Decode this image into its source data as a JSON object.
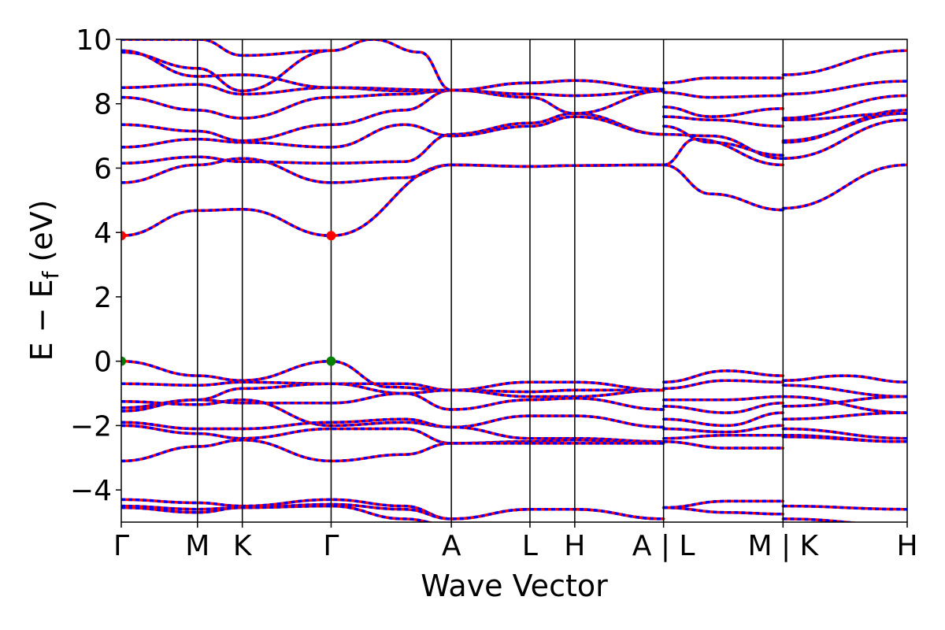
{
  "chart_data": {
    "type": "line",
    "xlabel": "Wave Vector",
    "ylabel": "E − E_f (eV)",
    "ylabel_parts": {
      "main": "E − E",
      "sub": "f",
      "unit": " (eV)"
    },
    "ylim": [
      -5,
      10
    ],
    "y_ticks": [
      -4,
      -2,
      0,
      2,
      4,
      6,
      8,
      10
    ],
    "y_tick_labels": [
      "−4",
      "−2",
      "0",
      "2",
      "4",
      "6",
      "8",
      "10"
    ],
    "x_range": [
      0,
      10.0
    ],
    "kpoints": [
      {
        "label": "Γ",
        "x": 0.0
      },
      {
        "label": "M",
        "x": 0.97
      },
      {
        "label": "K",
        "x": 1.54
      },
      {
        "label": "Γ",
        "x": 2.67
      },
      {
        "label": "A",
        "x": 4.2
      },
      {
        "label": "L",
        "x": 5.2
      },
      {
        "label": "H",
        "x": 5.77
      },
      {
        "label": "A | L",
        "x": 6.9
      },
      {
        "label": "M | K",
        "x": 8.42
      },
      {
        "label": "H",
        "x": 10.0
      }
    ],
    "bands_overlay_colors": {
      "primary": "#ff0000",
      "secondary": "#0000ff"
    },
    "band_points": [
      {
        "name": "c1",
        "pts": [
          [
            0,
            3.9
          ],
          [
            0.97,
            4.68
          ],
          [
            1.54,
            4.72
          ],
          [
            2.67,
            3.9
          ],
          [
            4.2,
            6.1
          ],
          [
            5.2,
            6.05
          ],
          [
            5.77,
            6.08
          ],
          [
            6.9,
            6.1
          ],
          [
            6.9,
            6.1
          ],
          [
            7.5,
            5.2
          ],
          [
            8.42,
            4.7
          ],
          [
            8.42,
            4.75
          ],
          [
            10,
            6.1
          ]
        ]
      },
      {
        "name": "c2",
        "pts": [
          [
            0,
            5.55
          ],
          [
            0.97,
            6.1
          ],
          [
            1.54,
            6.3
          ],
          [
            2.67,
            5.55
          ],
          [
            3.6,
            5.7
          ],
          [
            4.2,
            6.1
          ],
          [
            5.2,
            6.05
          ],
          [
            5.77,
            6.08
          ],
          [
            6.9,
            6.1
          ],
          [
            6.9,
            6.1
          ],
          [
            7.3,
            6.9
          ],
          [
            8.42,
            6.1
          ],
          [
            8.42,
            6.3
          ],
          [
            10,
            7.5
          ]
        ]
      },
      {
        "name": "c3",
        "pts": [
          [
            0,
            6.15
          ],
          [
            0.97,
            6.35
          ],
          [
            1.54,
            6.2
          ],
          [
            2.67,
            6.15
          ],
          [
            3.6,
            6.2
          ],
          [
            4.2,
            7.05
          ],
          [
            5.2,
            7.4
          ],
          [
            5.77,
            7.7
          ],
          [
            6.9,
            7.05
          ],
          [
            6.9,
            7.05
          ],
          [
            7.5,
            7.0
          ],
          [
            8.42,
            6.3
          ],
          [
            8.42,
            6.85
          ],
          [
            10,
            7.7
          ]
        ]
      },
      {
        "name": "c4",
        "pts": [
          [
            0,
            6.65
          ],
          [
            0.97,
            6.9
          ],
          [
            1.54,
            6.8
          ],
          [
            2.67,
            6.65
          ],
          [
            3.6,
            7.35
          ],
          [
            4.2,
            7.0
          ],
          [
            5.2,
            7.3
          ],
          [
            5.77,
            7.6
          ],
          [
            6.9,
            7.05
          ],
          [
            6.9,
            7.3
          ],
          [
            7.5,
            6.8
          ],
          [
            8.42,
            6.4
          ],
          [
            8.42,
            6.8
          ],
          [
            10,
            7.8
          ]
        ]
      },
      {
        "name": "c5",
        "pts": [
          [
            0,
            7.35
          ],
          [
            0.97,
            7.15
          ],
          [
            1.54,
            6.85
          ],
          [
            2.67,
            7.35
          ],
          [
            3.6,
            7.8
          ],
          [
            4.2,
            8.42
          ],
          [
            5.2,
            8.2
          ],
          [
            5.77,
            7.7
          ],
          [
            6.9,
            8.4
          ],
          [
            6.9,
            7.6
          ],
          [
            7.5,
            7.5
          ],
          [
            8.42,
            7.3
          ],
          [
            8.42,
            7.5
          ],
          [
            10,
            7.7
          ]
        ]
      },
      {
        "name": "c6",
        "pts": [
          [
            0,
            8.2
          ],
          [
            0.97,
            7.8
          ],
          [
            1.54,
            7.55
          ],
          [
            2.67,
            8.2
          ],
          [
            3.6,
            8.3
          ],
          [
            4.2,
            8.42
          ],
          [
            5.2,
            8.3
          ],
          [
            5.77,
            8.25
          ],
          [
            6.9,
            8.4
          ],
          [
            6.9,
            7.9
          ],
          [
            7.5,
            7.6
          ],
          [
            8.42,
            7.85
          ],
          [
            8.42,
            7.55
          ],
          [
            10,
            8.25
          ]
        ]
      },
      {
        "name": "c7",
        "pts": [
          [
            0,
            8.5
          ],
          [
            0.97,
            8.6
          ],
          [
            1.54,
            8.3
          ],
          [
            2.67,
            8.5
          ],
          [
            3.6,
            8.4
          ],
          [
            4.2,
            8.42
          ],
          [
            5.2,
            8.65
          ],
          [
            5.77,
            8.72
          ],
          [
            6.9,
            8.45
          ],
          [
            6.9,
            8.35
          ],
          [
            7.5,
            8.2
          ],
          [
            8.42,
            8.25
          ],
          [
            8.42,
            8.3
          ],
          [
            10,
            8.7
          ]
        ]
      },
      {
        "name": "c8",
        "pts": [
          [
            0,
            9.65
          ],
          [
            0.97,
            8.85
          ],
          [
            1.54,
            8.9
          ],
          [
            2.67,
            8.5
          ],
          [
            4.2,
            8.42
          ],
          [
            5.2,
            8.65
          ],
          [
            5.77,
            8.72
          ],
          [
            6.9,
            8.45
          ],
          [
            6.9,
            8.65
          ],
          [
            7.5,
            8.8
          ],
          [
            8.42,
            8.8
          ],
          [
            8.42,
            8.9
          ],
          [
            10,
            9.65
          ]
        ]
      },
      {
        "name": "c9",
        "pts": [
          [
            0,
            9.6
          ],
          [
            0.97,
            9.1
          ],
          [
            1.54,
            8.4
          ],
          [
            2.67,
            9.65
          ],
          [
            3.2,
            10.0
          ],
          [
            3.8,
            9.6
          ],
          [
            4.2,
            8.42
          ]
        ]
      },
      {
        "name": "c10",
        "pts": [
          [
            0,
            10.0
          ],
          [
            1.0,
            10.0
          ],
          [
            1.54,
            9.5
          ],
          [
            2.67,
            9.65
          ]
        ]
      },
      {
        "name": "v1",
        "pts": [
          [
            0,
            0.0
          ],
          [
            0.97,
            -0.45
          ],
          [
            1.54,
            -0.6
          ],
          [
            2.67,
            0.0
          ],
          [
            3.4,
            -0.8
          ],
          [
            4.2,
            -0.9
          ],
          [
            5.2,
            -0.65
          ],
          [
            5.77,
            -0.65
          ],
          [
            6.9,
            -0.9
          ],
          [
            6.9,
            -0.65
          ],
          [
            7.7,
            -0.3
          ],
          [
            8.42,
            -0.45
          ],
          [
            8.42,
            -0.6
          ],
          [
            9.2,
            -0.45
          ],
          [
            10,
            -0.65
          ]
        ]
      },
      {
        "name": "v2",
        "pts": [
          [
            0,
            -0.7
          ],
          [
            0.97,
            -0.75
          ],
          [
            1.54,
            -0.65
          ],
          [
            2.67,
            -0.7
          ],
          [
            3.6,
            -0.7
          ],
          [
            4.2,
            -0.9
          ],
          [
            5.2,
            -0.95
          ],
          [
            5.77,
            -0.9
          ],
          [
            6.9,
            -0.9
          ],
          [
            6.9,
            -0.85
          ],
          [
            7.7,
            -0.6
          ],
          [
            8.42,
            -0.65
          ],
          [
            8.42,
            -0.75
          ],
          [
            10,
            -1.1
          ]
        ]
      },
      {
        "name": "v3",
        "pts": [
          [
            0,
            -1.45
          ],
          [
            0.97,
            -1.2
          ],
          [
            1.54,
            -0.85
          ],
          [
            2.67,
            -0.7
          ],
          [
            3.6,
            -1.0
          ],
          [
            4.2,
            -0.9
          ],
          [
            5.2,
            -1.1
          ],
          [
            5.77,
            -1.1
          ],
          [
            6.9,
            -0.9
          ],
          [
            6.9,
            -1.2
          ],
          [
            7.7,
            -1.2
          ],
          [
            8.42,
            -1.1
          ],
          [
            8.42,
            -1.1
          ],
          [
            10,
            -1.6
          ]
        ]
      },
      {
        "name": "v4",
        "pts": [
          [
            0,
            -1.55
          ],
          [
            0.97,
            -1.2
          ],
          [
            1.54,
            -1.3
          ],
          [
            2.67,
            -1.3
          ],
          [
            3.6,
            -1.0
          ],
          [
            4.2,
            -1.5
          ],
          [
            5.2,
            -1.2
          ],
          [
            5.77,
            -1.15
          ],
          [
            6.9,
            -1.5
          ],
          [
            6.9,
            -1.4
          ],
          [
            7.7,
            -1.6
          ],
          [
            8.42,
            -1.3
          ],
          [
            8.42,
            -1.4
          ],
          [
            10,
            -1.1
          ]
        ]
      },
      {
        "name": "v5",
        "pts": [
          [
            0,
            -1.25
          ],
          [
            0.97,
            -1.35
          ],
          [
            1.54,
            -1.2
          ],
          [
            2.67,
            -2.0
          ],
          [
            3.6,
            -1.9
          ],
          [
            4.2,
            -2.05
          ],
          [
            5.2,
            -1.7
          ],
          [
            5.77,
            -1.7
          ],
          [
            6.9,
            -2.05
          ],
          [
            6.9,
            -1.8
          ],
          [
            7.7,
            -2.0
          ],
          [
            8.42,
            -1.6
          ],
          [
            8.42,
            -1.8
          ],
          [
            10,
            -1.6
          ]
        ]
      },
      {
        "name": "v6",
        "pts": [
          [
            0,
            -1.9
          ],
          [
            0.97,
            -2.1
          ],
          [
            1.54,
            -2.1
          ],
          [
            2.67,
            -1.9
          ],
          [
            3.6,
            -1.8
          ],
          [
            4.2,
            -2.05
          ],
          [
            5.2,
            -2.4
          ],
          [
            5.77,
            -2.4
          ],
          [
            6.9,
            -2.5
          ],
          [
            6.9,
            -2.1
          ],
          [
            7.7,
            -2.2
          ],
          [
            8.42,
            -2.0
          ],
          [
            8.42,
            -2.1
          ],
          [
            10,
            -2.4
          ]
        ]
      },
      {
        "name": "v7",
        "pts": [
          [
            0,
            -2.0
          ],
          [
            0.97,
            -2.25
          ],
          [
            1.54,
            -2.4
          ],
          [
            2.67,
            -2.1
          ],
          [
            3.6,
            -2.1
          ],
          [
            4.2,
            -2.55
          ],
          [
            5.2,
            -2.5
          ],
          [
            5.77,
            -2.45
          ],
          [
            6.9,
            -2.55
          ],
          [
            6.9,
            -2.4
          ],
          [
            7.7,
            -2.3
          ],
          [
            8.42,
            -2.3
          ],
          [
            8.42,
            -2.3
          ],
          [
            10,
            -2.5
          ]
        ]
      },
      {
        "name": "v8",
        "pts": [
          [
            0,
            -3.1
          ],
          [
            0.97,
            -2.65
          ],
          [
            1.54,
            -2.45
          ],
          [
            2.67,
            -3.1
          ],
          [
            3.6,
            -2.9
          ],
          [
            4.2,
            -2.55
          ],
          [
            5.2,
            -2.55
          ],
          [
            5.77,
            -2.55
          ],
          [
            6.9,
            -2.55
          ],
          [
            6.9,
            -2.5
          ],
          [
            7.7,
            -2.7
          ],
          [
            8.42,
            -2.7
          ],
          [
            8.42,
            -2.35
          ],
          [
            10,
            -2.5
          ]
        ]
      },
      {
        "name": "v9",
        "pts": [
          [
            0,
            -4.3
          ],
          [
            0.97,
            -4.4
          ],
          [
            1.54,
            -4.5
          ],
          [
            2.67,
            -4.3
          ],
          [
            3.6,
            -4.5
          ],
          [
            4.2,
            -4.9
          ],
          [
            5.2,
            -4.6
          ],
          [
            5.77,
            -4.6
          ],
          [
            6.9,
            -4.9
          ],
          [
            6.9,
            -4.55
          ],
          [
            7.7,
            -4.35
          ],
          [
            8.42,
            -4.35
          ],
          [
            8.42,
            -4.5
          ],
          [
            10,
            -4.6
          ]
        ]
      },
      {
        "name": "v10",
        "pts": [
          [
            0,
            -4.5
          ],
          [
            0.97,
            -4.6
          ],
          [
            1.54,
            -4.55
          ],
          [
            2.67,
            -4.45
          ],
          [
            3.6,
            -4.6
          ],
          [
            4.2,
            -4.9
          ],
          [
            5.2,
            -4.6
          ],
          [
            5.77,
            -4.6
          ],
          [
            6.9,
            -4.9
          ],
          [
            6.9,
            -4.55
          ],
          [
            7.7,
            -4.7
          ],
          [
            8.42,
            -4.75
          ],
          [
            8.42,
            -4.9
          ],
          [
            10,
            -5.1
          ]
        ]
      },
      {
        "name": "v11",
        "pts": [
          [
            0,
            -4.55
          ],
          [
            0.97,
            -4.7
          ],
          [
            1.54,
            -4.55
          ],
          [
            2.67,
            -4.5
          ],
          [
            3.6,
            -4.9
          ],
          [
            4.2,
            -5.1
          ]
        ]
      }
    ],
    "markers": [
      {
        "x": 0.0,
        "y": 3.9,
        "color": "#ff0000"
      },
      {
        "x": 2.67,
        "y": 3.9,
        "color": "#ff0000"
      },
      {
        "x": 0.0,
        "y": 0.0,
        "color": "#008000"
      },
      {
        "x": 2.67,
        "y": 0.0,
        "color": "#008000"
      }
    ]
  }
}
